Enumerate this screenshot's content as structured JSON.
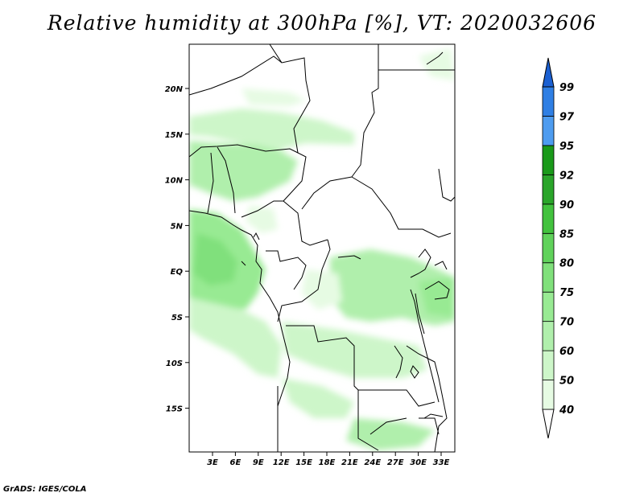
{
  "title": "Relative humidity at 300hPa [%], VT: 2020032606",
  "footer": "GrADS: IGES/COLA",
  "map": {
    "lat_labels": [
      "20N",
      "15N",
      "10N",
      "5N",
      "EQ",
      "5S",
      "10S",
      "15S"
    ],
    "lon_labels": [
      "3E",
      "6E",
      "9E",
      "12E",
      "15E",
      "18E",
      "21E",
      "24E",
      "27E",
      "30E",
      "33E"
    ]
  },
  "colorbar": {
    "levels": [
      "40",
      "50",
      "60",
      "70",
      "75",
      "80",
      "85",
      "90",
      "92",
      "95",
      "97",
      "99"
    ],
    "colors": [
      "#ffffff",
      "#e6fbe3",
      "#cdf6c9",
      "#b0efac",
      "#98ea93",
      "#80e07b",
      "#60d25b",
      "#42c23e",
      "#2aa52a",
      "#1a9a1a",
      "#4e9cf0",
      "#2f7fe4",
      "#1b60d2"
    ]
  }
}
